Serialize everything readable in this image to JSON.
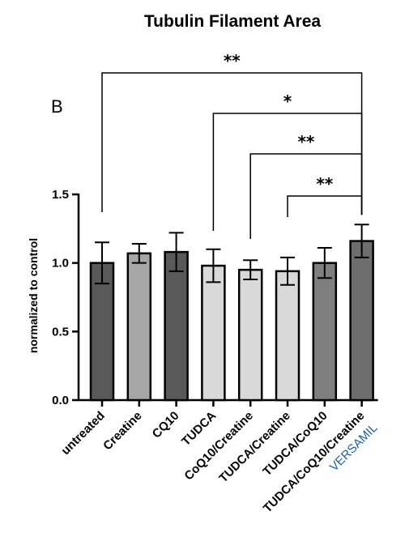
{
  "chart_data": {
    "type": "bar",
    "title": "Tubulin Filament Area",
    "panel_label": "B",
    "ylabel": "normalized to control",
    "xlabel": "",
    "ylim": [
      0,
      1.5
    ],
    "yticks": [
      "0.0",
      "0.5",
      "1.0",
      "1.5"
    ],
    "grid": false,
    "categories": [
      "untreated",
      "Creatine",
      "CQ10",
      "TUDCA",
      "CoQ10/Creatine",
      "TUDCA/Creatine",
      "TUDCA/CoQ10",
      "TUDCA/CoQ10/Creatine"
    ],
    "values": [
      1.0,
      1.07,
      1.08,
      0.98,
      0.95,
      0.94,
      1.0,
      1.16
    ],
    "errors": [
      0.15,
      0.07,
      0.14,
      0.12,
      0.07,
      0.1,
      0.11,
      0.12
    ],
    "bar_colors": [
      "#595959",
      "#a6a6a6",
      "#595959",
      "#d9d9d9",
      "#d9d9d9",
      "#d9d9d9",
      "#7f7f7f",
      "#6e6e6e"
    ],
    "extra_label": {
      "text": "VERSAMIL",
      "color": "#1f5fa8",
      "category_index": 7
    },
    "significance": [
      {
        "from": 0,
        "to": 7,
        "label": "**"
      },
      {
        "from": 3,
        "to": 7,
        "label": "*"
      },
      {
        "from": 4,
        "to": 7,
        "label": "**"
      },
      {
        "from": 5,
        "to": 7,
        "label": "**"
      }
    ]
  }
}
